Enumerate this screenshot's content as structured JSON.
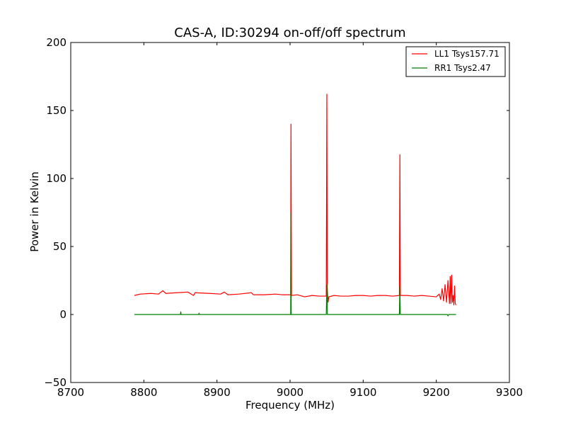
{
  "chart_data": {
    "type": "line",
    "title": "CAS-A, ID:30294 on-off/off spectrum",
    "xlabel": "Frequency (MHz)",
    "ylabel": "Power in Kelvin",
    "xlim": [
      8700,
      9300
    ],
    "ylim": [
      -50,
      200
    ],
    "xticks": [
      8700,
      8800,
      8900,
      9000,
      9100,
      9200,
      9300
    ],
    "yticks": [
      -50,
      0,
      50,
      100,
      150,
      200
    ],
    "xtick_labels": [
      "8700",
      "8800",
      "8900",
      "9000",
      "9100",
      "9200",
      "9300"
    ],
    "ytick_labels": [
      "−50",
      "0",
      "50",
      "100",
      "150",
      "200"
    ],
    "grid": false,
    "legend_position": "top-right",
    "series": [
      {
        "name": "LL1 Tsys157.71",
        "color": "#ff0000",
        "points": [
          [
            8787,
            14
          ],
          [
            8795,
            15
          ],
          [
            8810,
            15.5
          ],
          [
            8820,
            15
          ],
          [
            8826,
            17.5
          ],
          [
            8830,
            15.5
          ],
          [
            8845,
            16
          ],
          [
            8860,
            16.5
          ],
          [
            8868,
            14
          ],
          [
            8870,
            16
          ],
          [
            8890,
            15.5
          ],
          [
            8905,
            15
          ],
          [
            8910,
            16.5
          ],
          [
            8915,
            14.5
          ],
          [
            8930,
            15
          ],
          [
            8947,
            16
          ],
          [
            8950,
            14.5
          ],
          [
            8965,
            14.5
          ],
          [
            8980,
            15
          ],
          [
            8990,
            14.5
          ],
          [
            8999,
            14.5
          ],
          [
            9000.8,
            14.5
          ],
          [
            9001.2,
            140
          ],
          [
            9001.6,
            75
          ],
          [
            9002,
            14
          ],
          [
            9010,
            14.5
          ],
          [
            9020,
            13
          ],
          [
            9030,
            14
          ],
          [
            9040,
            13.5
          ],
          [
            9049.5,
            13.5
          ],
          [
            9050.3,
            162
          ],
          [
            9050.9,
            20
          ],
          [
            9051.5,
            13
          ],
          [
            9052,
            9
          ],
          [
            9053,
            13
          ],
          [
            9060,
            14
          ],
          [
            9070,
            13.5
          ],
          [
            9080,
            13.5
          ],
          [
            9090,
            14
          ],
          [
            9100,
            14
          ],
          [
            9110,
            13.5
          ],
          [
            9120,
            14
          ],
          [
            9130,
            14
          ],
          [
            9140,
            13.5
          ],
          [
            9149.5,
            14
          ],
          [
            9150.2,
            117.5
          ],
          [
            9150.8,
            14
          ],
          [
            9160,
            14
          ],
          [
            9170,
            13.5
          ],
          [
            9180,
            14
          ],
          [
            9190,
            13.5
          ],
          [
            9200,
            13
          ],
          [
            9204,
            15
          ],
          [
            9206,
            11
          ],
          [
            9208,
            19
          ],
          [
            9210,
            10
          ],
          [
            9212,
            22
          ],
          [
            9214,
            9
          ],
          [
            9216,
            25
          ],
          [
            9218,
            8
          ],
          [
            9219,
            28
          ],
          [
            9220,
            8
          ],
          [
            9221,
            29
          ],
          [
            9222,
            9
          ],
          [
            9223,
            14
          ],
          [
            9224,
            7
          ],
          [
            9225,
            21
          ],
          [
            9226,
            8
          ],
          [
            9227,
            7
          ]
        ]
      },
      {
        "name": "RR1 Tsys2.47",
        "color": "#008000",
        "points": [
          [
            8787,
            0
          ],
          [
            8850,
            0
          ],
          [
            8850.5,
            2
          ],
          [
            8851,
            0
          ],
          [
            8875,
            0
          ],
          [
            8875.5,
            1
          ],
          [
            8876,
            0
          ],
          [
            9000.8,
            0
          ],
          [
            9001.2,
            75
          ],
          [
            9001.6,
            0
          ],
          [
            9049.5,
            0
          ],
          [
            9050.3,
            22
          ],
          [
            9051,
            0
          ],
          [
            9149.5,
            0
          ],
          [
            9150.2,
            21
          ],
          [
            9150.8,
            0
          ],
          [
            9215,
            0
          ],
          [
            9216,
            -1
          ],
          [
            9217,
            0
          ],
          [
            9227,
            0
          ]
        ]
      }
    ]
  }
}
